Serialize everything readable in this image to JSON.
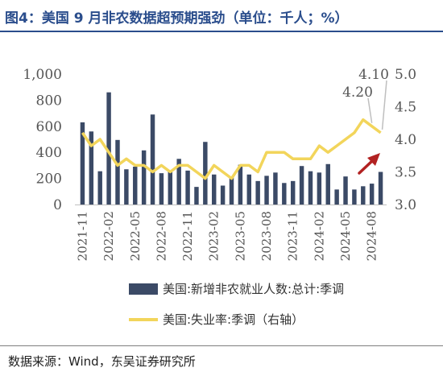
{
  "title": "图4：美国 9 月非农数据超预期强劲（单位：千人；%）",
  "source": "数据来源：Wind，东吴证券研究所",
  "chart_data": {
    "type": "bar",
    "categories": [
      "2021-11",
      "2021-12",
      "2022-01",
      "2022-02",
      "2022-03",
      "2022-04",
      "2022-05",
      "2022-06",
      "2022-07",
      "2022-08",
      "2022-09",
      "2022-10",
      "2022-11",
      "2022-12",
      "2023-01",
      "2023-02",
      "2023-03",
      "2023-04",
      "2023-05",
      "2023-06",
      "2023-07",
      "2023-08",
      "2023-09",
      "2023-10",
      "2023-11",
      "2023-12",
      "2024-01",
      "2024-02",
      "2024-03",
      "2024-04",
      "2024-05",
      "2024-06",
      "2024-07",
      "2024-08",
      "2024-09"
    ],
    "x_tick_labels": [
      "2021-11",
      "2022-02",
      "2022-05",
      "2022-08",
      "2022-11",
      "2023-02",
      "2023-05",
      "2023-08",
      "2023-11",
      "2024-02",
      "2024-05",
      "2024-08"
    ],
    "series": [
      {
        "name": "美国:新增非农就业人数:总计:季调",
        "type": "bar",
        "axis": "left",
        "color": "#3b4a66",
        "values": [
          630,
          560,
          255,
          860,
          495,
          270,
          290,
          415,
          690,
          240,
          250,
          350,
          260,
          135,
          480,
          230,
          145,
          210,
          305,
          230,
          180,
          220,
          245,
          165,
          180,
          295,
          255,
          245,
          310,
          115,
          215,
          115,
          140,
          160,
          250
        ]
      },
      {
        "name": "美国:失业率:季调（右轴）",
        "type": "line",
        "axis": "right",
        "color": "#f2d55b",
        "values": [
          4.1,
          3.9,
          4.0,
          3.8,
          3.6,
          3.7,
          3.6,
          3.6,
          3.5,
          3.6,
          3.5,
          3.6,
          3.6,
          3.5,
          3.4,
          3.6,
          3.5,
          3.4,
          3.6,
          3.6,
          3.5,
          3.8,
          3.8,
          3.8,
          3.7,
          3.7,
          3.7,
          3.9,
          3.8,
          3.9,
          4.0,
          4.1,
          4.3,
          4.2,
          4.1
        ]
      }
    ],
    "y_left": {
      "ticks": [
        "0",
        "200",
        "400",
        "600",
        "800",
        "1,000"
      ],
      "range": [
        0,
        1000
      ]
    },
    "y_right": {
      "ticks": [
        "3.0",
        "3.5",
        "4.0",
        "4.5",
        "5.0"
      ],
      "range": [
        3.0,
        5.0
      ]
    },
    "annotations": [
      "4.20",
      "4.10"
    ],
    "arrow_color": "#b22222",
    "grid": false
  }
}
